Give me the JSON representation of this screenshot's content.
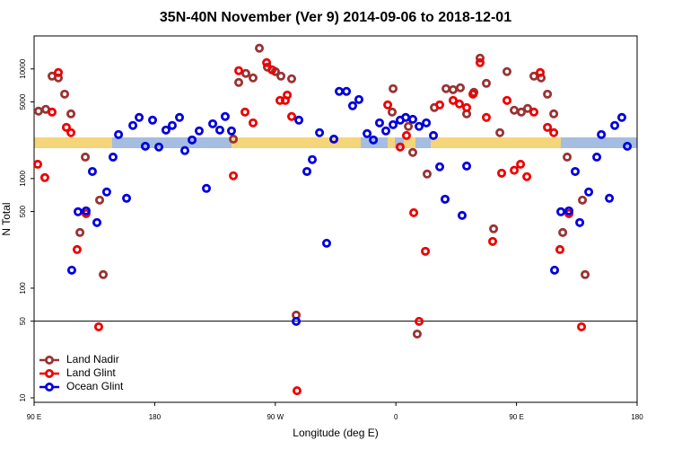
{
  "chart_data": {
    "type": "scatter",
    "title": "35N-40N November (Ver 9)   2014-09-06 to 2018-12-01",
    "x_label": "Longitude (deg E)",
    "y_label": "N Total",
    "xlim": [
      90,
      540
    ],
    "ylim": [
      9.1,
      20000
    ],
    "log_y": true,
    "xticks": [
      {
        "value": 90,
        "label": "90 E"
      },
      180,
      {
        "value": 270,
        "label": "90 W"
      },
      {
        "value": 360,
        "label": "0"
      },
      {
        "value": 450,
        "label": "90 E"
      },
      {
        "value": 540,
        "label": "180"
      }
    ],
    "yticks": [
      10,
      50,
      100,
      500,
      1000,
      5000,
      10000
    ],
    "reference_line": 50,
    "legend": "bottom-left",
    "series": [
      {
        "name": "Land Nadir",
        "color": "#993333",
        "x": [
          93.3,
          98.7,
          103.4,
          108.1,
          112.8,
          117.5,
          128.2,
          124.2,
          138.9,
          141.6,
          238.7,
          242.7,
          248.0,
          253.4,
          258.1,
          264.1,
          270.1,
          274.2,
          282.2,
          285.6,
          357.2,
          357.9,
          369.3,
          372.6,
          383.3,
          388.7,
          397.4,
          402.7,
          408.1,
          412.8,
          418.2,
          422.8,
          427.5,
          432.9,
          437.6,
          442.9,
          448.3,
          453.6,
          458.3,
          463.0,
          468.4,
          473.1,
          477.8,
          487.8,
          484.5,
          499.2,
          501.2,
          375.9
        ],
        "values": [
          4120,
          4280,
          8590,
          8280,
          5890,
          3890,
          1570,
          322,
          636,
          133,
          2290,
          7530,
          9100,
          8280,
          15450,
          10380,
          9450,
          8590,
          8130,
          56.8,
          4040,
          6610,
          2990,
          1730,
          1100,
          4440,
          6610,
          6470,
          6730,
          3890,
          6120,
          12540,
          7390,
          348,
          2620,
          9450,
          4200,
          4040,
          4360,
          8590,
          8280,
          5890,
          3890,
          1570,
          322,
          636,
          133,
          38.2
        ]
      },
      {
        "name": "Land Glint",
        "color": "#ee0000",
        "x": [
          92.7,
          98.0,
          103.4,
          108.1,
          114.1,
          117.5,
          122.1,
          128.8,
          138.2,
          238.7,
          242.7,
          247.4,
          253.4,
          263.5,
          267.5,
          273.5,
          277.5,
          278.9,
          282.2,
          286.2,
          353.9,
          363.2,
          367.9,
          373.3,
          377.3,
          382.0,
          392.7,
          402.7,
          407.4,
          412.8,
          417.5,
          422.8,
          427.5,
          432.2,
          438.9,
          442.9,
          448.3,
          453.0,
          457.7,
          463.0,
          467.7,
          473.1,
          477.8,
          482.4,
          489.1,
          498.5
        ],
        "values": [
          1350,
          1020,
          4040,
          9270,
          2930,
          2620,
          225,
          479,
          44.4,
          1060,
          9640,
          4040,
          3220,
          11400,
          9820,
          5160,
          5160,
          5780,
          3680,
          11.6,
          4700,
          1940,
          2470,
          488,
          49.8,
          217,
          4700,
          5160,
          4790,
          4440,
          5890,
          11400,
          3610,
          267,
          1120,
          5160,
          1190,
          1350,
          1040,
          4040,
          9270,
          2930,
          2620,
          225,
          479,
          44.4
        ]
      },
      {
        "name": "Ocean Glint",
        "color": "#0000dd",
        "x": [
          118.1,
          122.8,
          128.8,
          133.5,
          136.9,
          144.2,
          148.9,
          153.0,
          159.0,
          163.7,
          168.4,
          173.0,
          178.4,
          183.1,
          188.4,
          193.1,
          198.5,
          202.5,
          207.9,
          213.2,
          218.6,
          223.3,
          228.6,
          232.6,
          237.3,
          285.6,
          287.6,
          293.6,
          297.6,
          303.0,
          308.3,
          313.7,
          317.7,
          323.1,
          327.7,
          332.4,
          338.5,
          343.2,
          347.8,
          352.5,
          357.9,
          363.2,
          367.3,
          372.6,
          377.3,
          382.7,
          388.0,
          392.7,
          396.7,
          409.4,
          412.8,
          478.4,
          483.1,
          489.1,
          493.8,
          497.2,
          503.9,
          509.9,
          513.3,
          519.3,
          523.3,
          528.6,
          532.7
        ],
        "values": [
          146,
          498,
          507,
          1160,
          397,
          754,
          1570,
          2520,
          661,
          3050,
          3610,
          1970,
          3410,
          1940,
          2770,
          3050,
          3610,
          1800,
          2250,
          2720,
          813,
          3160,
          2770,
          3680,
          2720,
          49.8,
          3410,
          1160,
          1490,
          2620,
          257,
          2290,
          6240,
          6240,
          4610,
          5260,
          2570,
          2250,
          3220,
          2720,
          3100,
          3410,
          3610,
          3470,
          2990,
          3220,
          2470,
          1280,
          648,
          461,
          1300,
          146,
          498,
          507,
          1160,
          397,
          754,
          1570,
          2520,
          661,
          3050,
          3610,
          1970
        ]
      }
    ]
  }
}
